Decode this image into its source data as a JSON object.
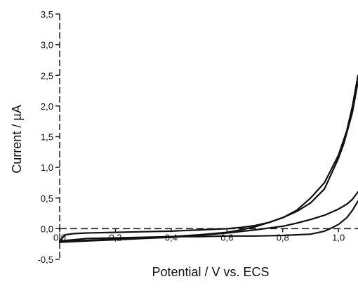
{
  "chart_data": {
    "type": "line",
    "title": "",
    "xlabel": "Potential / V vs. ECS",
    "ylabel": "Current / µA",
    "xlim": [
      0.0,
      1.07
    ],
    "ylim": [
      -0.5,
      3.5
    ],
    "x_ticks": [
      {
        "value": 0.0,
        "label": "0,0"
      },
      {
        "value": 0.2,
        "label": "0,2"
      },
      {
        "value": 0.4,
        "label": "0,4"
      },
      {
        "value": 0.6,
        "label": "0,6"
      },
      {
        "value": 0.8,
        "label": "0,8"
      },
      {
        "value": 1.0,
        "label": "1,0"
      }
    ],
    "y_ticks": [
      {
        "value": -0.5,
        "label": "-0,5"
      },
      {
        "value": 0.0,
        "label": "0,0"
      },
      {
        "value": 0.5,
        "label": "0,5"
      },
      {
        "value": 1.0,
        "label": "1,0"
      },
      {
        "value": 1.5,
        "label": "1,5"
      },
      {
        "value": 2.0,
        "label": "2,0"
      },
      {
        "value": 2.5,
        "label": "2,5"
      },
      {
        "value": 3.0,
        "label": "3,0"
      },
      {
        "value": 3.5,
        "label": "3,5"
      }
    ],
    "zero_line": 0.0,
    "grid": false,
    "legend": "none",
    "line_color": "#111111",
    "series": [
      {
        "x": [
          0.0,
          0.02,
          0.05,
          0.1,
          0.2,
          0.3,
          0.4,
          0.5,
          0.6,
          0.65,
          0.7,
          0.75,
          0.8,
          0.85,
          0.9,
          0.95,
          1.0,
          1.03,
          1.05,
          1.07
        ],
        "y": [
          -0.2,
          -0.1,
          -0.08,
          -0.07,
          -0.06,
          -0.05,
          -0.04,
          -0.02,
          0.0,
          0.02,
          0.05,
          0.1,
          0.18,
          0.3,
          0.5,
          0.75,
          1.2,
          1.6,
          2.0,
          2.5
        ]
      },
      {
        "x": [
          1.07,
          1.05,
          1.02,
          1.0,
          0.97,
          0.95,
          0.9,
          0.85,
          0.8,
          0.75,
          0.7,
          0.65,
          0.6,
          0.5,
          0.4,
          0.3,
          0.2,
          0.1,
          0.05,
          0.0
        ],
        "y": [
          2.4,
          1.9,
          1.4,
          1.15,
          0.85,
          0.65,
          0.42,
          0.28,
          0.18,
          0.1,
          0.03,
          -0.02,
          -0.06,
          -0.1,
          -0.13,
          -0.15,
          -0.17,
          -0.19,
          -0.2,
          -0.22
        ]
      },
      {
        "x": [
          0.0,
          0.1,
          0.2,
          0.3,
          0.4,
          0.5,
          0.6,
          0.7,
          0.8,
          0.85,
          0.9,
          0.95,
          1.0,
          1.03,
          1.05,
          1.07
        ],
        "y": [
          -0.22,
          -0.2,
          -0.18,
          -0.16,
          -0.14,
          -0.11,
          -0.07,
          -0.02,
          0.04,
          0.09,
          0.15,
          0.22,
          0.32,
          0.4,
          0.48,
          0.6
        ]
      },
      {
        "x": [
          1.07,
          1.05,
          1.03,
          1.0,
          0.97,
          0.95,
          0.9,
          0.8,
          0.7,
          0.6,
          0.5,
          0.4,
          0.3,
          0.2,
          0.1,
          0.05,
          0.0
        ],
        "y": [
          0.45,
          0.3,
          0.18,
          0.07,
          0.0,
          -0.04,
          -0.09,
          -0.11,
          -0.12,
          -0.12,
          -0.13,
          -0.13,
          -0.14,
          -0.15,
          -0.16,
          -0.18,
          -0.2
        ]
      }
    ]
  }
}
